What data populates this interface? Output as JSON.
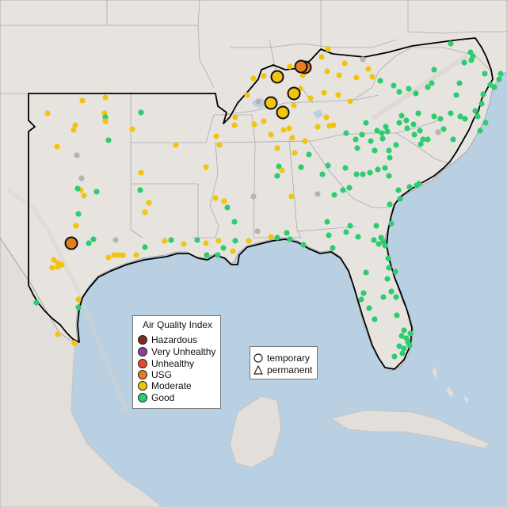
{
  "colors": {
    "ocean": "#b9cfe2",
    "land": "#e7e4e0",
    "relief": "#d3d0cc",
    "hazardous": "#7e2d1c",
    "very_unhealthy": "#8f3f97",
    "unhealthy": "#e34a33",
    "usg": "#e87d1e",
    "moderate": "#f2c40f",
    "good": "#2ecc71",
    "no_data": "#b4b4b4"
  },
  "legend": {
    "title": "Air Quality Index",
    "items": [
      {
        "label": "Hazardous",
        "color": "#7e2d1c"
      },
      {
        "label": "Very Unhealthy",
        "color": "#8f3f97"
      },
      {
        "label": "Unhealthy",
        "color": "#e34a33"
      },
      {
        "label": "USG",
        "color": "#e87d1e"
      },
      {
        "label": "Moderate",
        "color": "#f2c40f"
      },
      {
        "label": "Good",
        "color": "#2ecc71"
      }
    ]
  },
  "site_type_legend": {
    "temporary": "temporary",
    "permanent": "permanent"
  }
}
